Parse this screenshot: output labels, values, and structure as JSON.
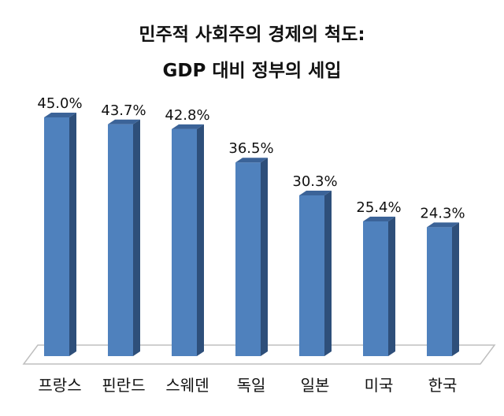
{
  "chart_data": {
    "type": "bar",
    "title": "민주적 사회주의 경제의 척도:",
    "subtitle": "GDP 대비 정부의 세입",
    "categories": [
      "프랑스",
      "핀란드",
      "스웨덴",
      "독일",
      "일본",
      "미국",
      "한국"
    ],
    "values": [
      45.0,
      43.7,
      42.8,
      36.5,
      30.3,
      25.4,
      24.3
    ],
    "value_labels": [
      "45.0%",
      "43.7%",
      "42.8%",
      "36.5%",
      "30.3%",
      "25.4%",
      "24.3%"
    ],
    "ylim": [
      0,
      45
    ],
    "grid": false,
    "legend": "none",
    "bar_color": "#4F81BD"
  }
}
